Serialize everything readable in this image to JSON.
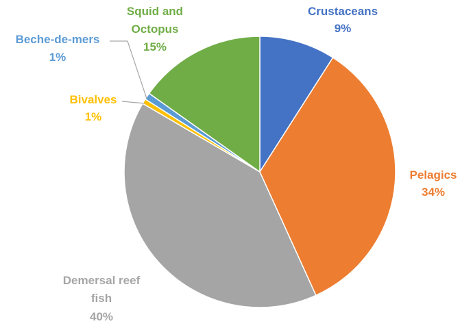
{
  "chart_data": {
    "type": "pie",
    "title": "",
    "slices": [
      {
        "label": "Crustaceans",
        "pct_label": "9%",
        "value": 9,
        "color": "#4472c4"
      },
      {
        "label": "Pelagics",
        "pct_label": "34%",
        "value": 34,
        "color": "#ed7d31"
      },
      {
        "label": "Demersal reef fish",
        "label_lines": [
          "Demersal reef",
          "fish"
        ],
        "pct_label": "40%",
        "value": 40,
        "color": "#a5a5a5"
      },
      {
        "label": "Bivalves",
        "pct_label": "1%",
        "value": 0.6,
        "color": "#ffc000"
      },
      {
        "label": "Beche-de-mers",
        "pct_label": "1%",
        "value": 0.8,
        "color": "#5b9bd5"
      },
      {
        "label": "Squid and Octopus",
        "label_lines": [
          "Squid and",
          "Octopus"
        ],
        "pct_label": "15%",
        "value": 15.1,
        "color": "#70ad47"
      }
    ]
  }
}
